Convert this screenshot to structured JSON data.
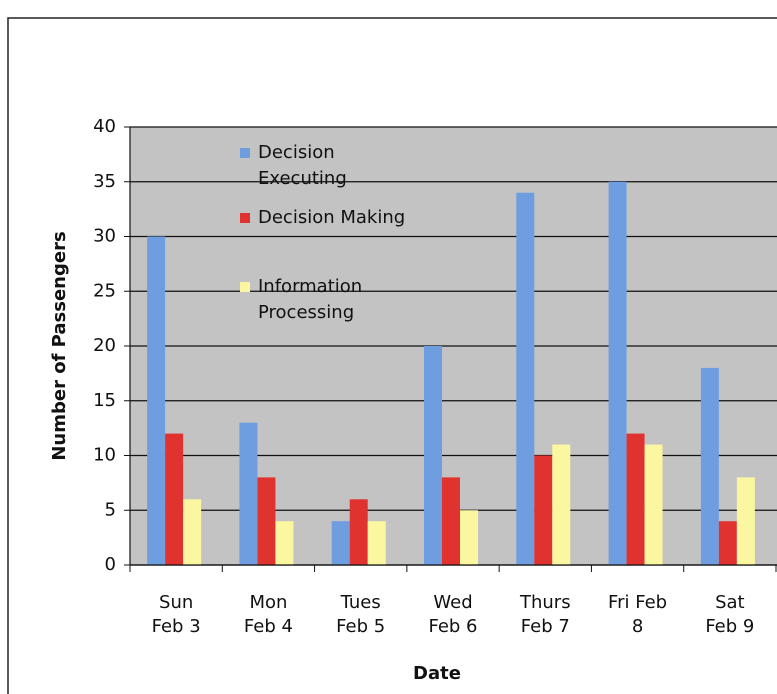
{
  "chart_data": {
    "type": "bar",
    "categories": [
      "Sun Feb 3",
      "Mon Feb 4",
      "Tues Feb 5",
      "Wed Feb 6",
      "Thurs Feb 7",
      "Fri Feb 8",
      "Sat Feb 9"
    ],
    "series": [
      {
        "name": "Decision Executing",
        "color": "#6f9ee0",
        "values": [
          30,
          13,
          4,
          20,
          34,
          35,
          18
        ]
      },
      {
        "name": "Decision Making",
        "color": "#e0322f",
        "values": [
          12,
          8,
          6,
          8,
          10,
          12,
          4
        ]
      },
      {
        "name": "Information Processing",
        "color": "#fbf7a0",
        "values": [
          6,
          4,
          4,
          5,
          11,
          11,
          8
        ]
      }
    ],
    "x_label": "Date",
    "y_label": "Number of Passengers",
    "ylim": [
      0,
      40
    ],
    "yticks": [
      0,
      5,
      10,
      15,
      20,
      25,
      30,
      35,
      40
    ],
    "grid": true,
    "legend": "upper left"
  }
}
